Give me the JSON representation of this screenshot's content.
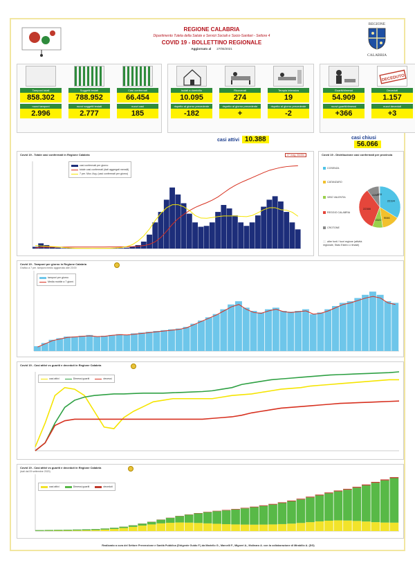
{
  "header": {
    "region": "REGIONE CALABRIA",
    "department": "Dipartimento Tutela della Salute e Servizi Sociali e Socio-Sanitari - Settore 4",
    "bulletin": "COVID 19 - BOLLETTINO REGIONALE",
    "updated_label": "Aggiornato al",
    "updated_date": "27/05/2021",
    "logo_right_top": "REGIONE",
    "logo_right_bottom": "CALABRIA"
  },
  "kpis": {
    "tamponi": {
      "label": "Tamponi totali",
      "value": "858.302",
      "label2": "nuovi tamponi",
      "value2": "2.996"
    },
    "soggetti": {
      "label": "Soggetti testati",
      "value": "788.952",
      "label2": "nuovi soggetti testati",
      "value2": "2.777"
    },
    "positivi": {
      "label": "Casi confermati",
      "value": "66.454",
      "label2": "nuovi casi",
      "value2": "185"
    },
    "domicilio": {
      "label": "isolati a domicilio",
      "value": "10.095",
      "label2": "rispetto al giorno precedente",
      "value2": "-182"
    },
    "ricoverati": {
      "label": "Ricoverati",
      "value": "274",
      "label2": "rispetto al giorno precedente",
      "value2": "+"
    },
    "intensiva": {
      "label": "Terapia intensiva",
      "value": "19",
      "label2": "rispetto al giorno precedente",
      "value2": "-2"
    },
    "guariti": {
      "label": "Guariti/dimessi",
      "value": "54.909",
      "label2": "nuovi guariti/dimessi",
      "value2": "+366"
    },
    "deceduti": {
      "label": "Deceduti",
      "value": "1.157",
      "label2": "nuovi deceduti",
      "value2": "+3"
    },
    "casi_attivi_label": "casi attivi",
    "casi_attivi": "10.388",
    "casi_chiusi_label": "casi chiusi",
    "casi_chiusi": "56.066",
    "deceduto_stamp": "DECEDUTO"
  },
  "colors": {
    "green_label": "#2e8b3c",
    "yellow_value": "#fff200",
    "navy_bar": "#1d2e7a",
    "red_line": "#d7301f",
    "yellow_line": "#f5e400",
    "blue_bar": "#6ec6ea",
    "green_line": "#2ea043",
    "active_yellow": "#f2e32a",
    "recovered_green": "#58b947",
    "deaths_red": "#c0392b"
  },
  "panels": {
    "p1": {
      "title": "Covid 19 - Totale casi confermati in Regione Calabria",
      "legend": [
        "casi confermati per giorno",
        "totale casi confermati (dati aggregati mensili)",
        "7 per. Mov. Avg. (casi confermati per giorno)"
      ],
      "badge": "27 mag. 66454"
    },
    "p2": {
      "title": "Covid 19 - Distribuzione casi confermati per provincia",
      "provinces": [
        "COSENZA",
        "CATANZARO",
        "VIBO VALENTIA",
        "REGGIO CALABRIA",
        "CROTONE",
        "altre fonti / fuori regione (attività regionale, Stato Estero o rimasti)"
      ],
      "pie_labels": [
        "22194",
        "9046",
        "5322",
        "22300",
        "6281",
        "403"
      ]
    },
    "p3": {
      "title": "Covid 19 - Tamponi per giorno in Regione Calabria",
      "subtitle": "Grafico a 7 per. tamponi medio aggiornato alle 23:00",
      "legend": [
        "tamponi per giorno",
        "Media mobile a 7 giorni"
      ]
    },
    "p4": {
      "title": "Covid 19 - Casi attivi vs guariti e deceduti in Regione Calabria",
      "legend": [
        "casi attivi",
        "Dimessi guariti",
        "decessi"
      ]
    },
    "p5": {
      "title": "Covid 19 - Casi attivi vs guariti e deceduti in Regione Calabria",
      "subtitle": "(dati dal 09 settembre 2020)",
      "legend": [
        "casi attivi",
        "Dimessi guariti",
        "deceduti"
      ]
    }
  },
  "footer": "Realizzato a cura del Settore Prevenzione e Sanità Pubblica (Dirigente Guido F.) da Mariello G., Marcelli F., Migneri A., Molinaro A. con la collaborazione di Mirabilio A. (DG)",
  "chart_data": [
    {
      "type": "bar",
      "id": "confirmed-daily",
      "ylim": [
        0,
        1000
      ],
      "y2lim": [
        0,
        70000
      ],
      "series": [
        {
          "name": "casi confermati per giorno",
          "values": [
            20,
            60,
            40,
            20,
            10,
            5,
            4,
            3,
            3,
            2,
            2,
            2,
            2,
            3,
            4,
            6,
            10,
            20,
            40,
            80,
            160,
            300,
            420,
            560,
            700,
            620,
            520,
            400,
            300,
            250,
            260,
            300,
            420,
            500,
            460,
            380,
            300,
            260,
            300,
            380,
            480,
            560,
            600,
            540,
            420,
            300,
            220
          ]
        },
        {
          "name": "totale casi confermati (dati aggregati mensili)",
          "values": [
            500,
            1100,
            1150,
            1180,
            1200,
            1210,
            1220,
            1230,
            1240,
            1250,
            1260,
            1270,
            1280,
            1300,
            1330,
            1380,
            1450,
            1600,
            1900,
            2400,
            3400,
            5500,
            9000,
            14000,
            19500,
            24000,
            27500,
            30500,
            33000,
            35000,
            36800,
            38900,
            41500,
            44800,
            48000,
            50700,
            53000,
            55000,
            57000,
            59000,
            61000,
            62800,
            64000,
            65100,
            65800,
            66200,
            66454
          ]
        }
      ]
    },
    {
      "type": "pie",
      "id": "province-distribution",
      "categories": [
        "COSENZA",
        "CATANZARO",
        "VIBO VALENTIA",
        "REGGIO CALABRIA",
        "CROTONE",
        "altre fonti"
      ],
      "values": [
        22194,
        9046,
        5322,
        22300,
        6281,
        403
      ]
    },
    {
      "type": "bar",
      "id": "tests-daily",
      "ylim": [
        0,
        5000
      ],
      "series": [
        {
          "name": "tamponi per giorno",
          "values": [
            300,
            500,
            700,
            800,
            900,
            900,
            950,
            1000,
            900,
            950,
            1000,
            1050,
            1000,
            1100,
            1150,
            1200,
            1250,
            1300,
            1350,
            1400,
            1500,
            1700,
            1900,
            2100,
            2300,
            2600,
            2900,
            3100,
            2700,
            2500,
            2400,
            2600,
            2700,
            2500,
            2450,
            2500,
            2600,
            2300,
            2400,
            2600,
            2800,
            3000,
            3100,
            3300,
            3500,
            3700,
            3500,
            3100,
            3000
          ]
        },
        {
          "name": "Media mobile a 7 giorni",
          "values": [
            250,
            450,
            650,
            750,
            850,
            880,
            920,
            950,
            900,
            920,
            980,
            1020,
            1000,
            1050,
            1100,
            1150,
            1200,
            1250,
            1300,
            1350,
            1450,
            1650,
            1850,
            2050,
            2250,
            2500,
            2750,
            2900,
            2600,
            2400,
            2350,
            2500,
            2600,
            2450,
            2400,
            2450,
            2500,
            2300,
            2350,
            2500,
            2700,
            2900,
            3000,
            3150,
            3300,
            3400,
            3300,
            3000,
            2900
          ]
        }
      ]
    },
    {
      "type": "line",
      "id": "active-vs-recovered",
      "ylim": [
        0,
        1000
      ],
      "series": [
        {
          "name": "casi attivi",
          "values": [
            50,
            350,
            700,
            800,
            780,
            700,
            500,
            300,
            280,
            420,
            500,
            560,
            620,
            640,
            660,
            660,
            660,
            660,
            660,
            680,
            700,
            710,
            720,
            740,
            760,
            780,
            790,
            800,
            820,
            830,
            840,
            850,
            860,
            870,
            880,
            890,
            900,
            900
          ]
        },
        {
          "name": "Dimessi guariti",
          "values": [
            0,
            100,
            350,
            550,
            640,
            680,
            700,
            710,
            720,
            720,
            725,
            730,
            730,
            730,
            735,
            740,
            745,
            750,
            760,
            780,
            800,
            840,
            860,
            880,
            900,
            910,
            920,
            930,
            940,
            950,
            960,
            965,
            970,
            975,
            980,
            985,
            990,
            1000
          ]
        },
        {
          "name": "decessi",
          "values": [
            0,
            100,
            320,
            380,
            400,
            400,
            400,
            400,
            400,
            400,
            400,
            400,
            400,
            400,
            400,
            400,
            400,
            400,
            410,
            420,
            430,
            450,
            480,
            500,
            520,
            540,
            550,
            560,
            570,
            580,
            590,
            600,
            605,
            610,
            615,
            620,
            625,
            630
          ]
        }
      ]
    },
    {
      "type": "area",
      "id": "stacked-cumulative",
      "ylim": [
        0,
        70000
      ],
      "series": [
        {
          "name": "casi attivi",
          "values": [
            200,
            300,
            400,
            500,
            700,
            900,
            1200,
            1800,
            2600,
            3800,
            5200,
            6800,
            8200,
            9500,
            10200,
            10600,
            10400,
            10000,
            9500,
            9000,
            8500,
            8200,
            8000,
            7900,
            8000,
            8200,
            8600,
            9200,
            10000,
            11000,
            12000,
            12800,
            13200,
            13000,
            12500,
            11800,
            11000,
            10500,
            10388
          ]
        },
        {
          "name": "Dimessi guariti",
          "values": [
            1000,
            1050,
            1100,
            1150,
            1200,
            1250,
            1300,
            1350,
            1450,
            1600,
            1900,
            2400,
            3200,
            4500,
            6000,
            7800,
            9800,
            11800,
            13800,
            15500,
            17000,
            18500,
            20000,
            21500,
            23000,
            24500,
            26000,
            27500,
            29000,
            30500,
            32000,
            33800,
            35800,
            38000,
            41000,
            44500,
            48500,
            52000,
            54909
          ]
        },
        {
          "name": "deceduti",
          "values": [
            30,
            30,
            40,
            40,
            50,
            50,
            60,
            70,
            80,
            100,
            120,
            150,
            180,
            220,
            260,
            300,
            350,
            400,
            450,
            500,
            550,
            600,
            650,
            700,
            750,
            800,
            850,
            880,
            900,
            920,
            950,
            980,
            1000,
            1030,
            1060,
            1090,
            1120,
            1140,
            1157
          ]
        }
      ]
    }
  ]
}
